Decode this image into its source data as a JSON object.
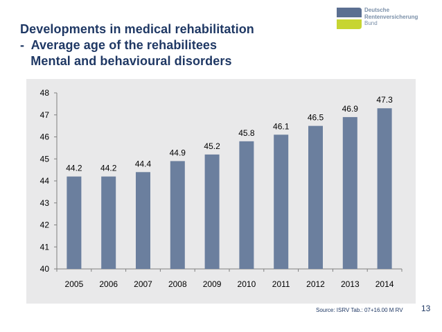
{
  "title": {
    "line1": "Developments in medical rehabilitation",
    "line2": "-  Average age of the rehabilitees",
    "line3": "   Mental and behavioural disorders"
  },
  "logo": {
    "name_line1": "Deutsche",
    "name_line2": "Rentenversicherung",
    "name_line3": "Bund",
    "colors": {
      "top": "#5b6f91",
      "bottom": "#c7d532"
    }
  },
  "source": "Source: ISRV Tab.: 07+16.00 M RV",
  "page_number": "13",
  "chart_data": {
    "type": "bar",
    "categories": [
      "2005",
      "2006",
      "2007",
      "2008",
      "2009",
      "2010",
      "2011",
      "2012",
      "2013",
      "2014"
    ],
    "values": [
      44.2,
      44.2,
      44.4,
      44.9,
      45.2,
      45.8,
      46.1,
      46.5,
      46.9,
      47.3
    ],
    "value_labels": [
      "44.2",
      "44.2",
      "44.4",
      "44.9",
      "45.2",
      "45.8",
      "46.1",
      "46.5",
      "46.9",
      "47.3"
    ],
    "ylim": [
      40,
      48
    ],
    "yticks": [
      "40",
      "41",
      "42",
      "43",
      "44",
      "45",
      "46",
      "47",
      "48"
    ],
    "title": "",
    "xlabel": "",
    "ylabel": "",
    "grid": false,
    "legend": "none",
    "bar_color": "#6b7f9e",
    "background_color": "#e9e9ea"
  }
}
